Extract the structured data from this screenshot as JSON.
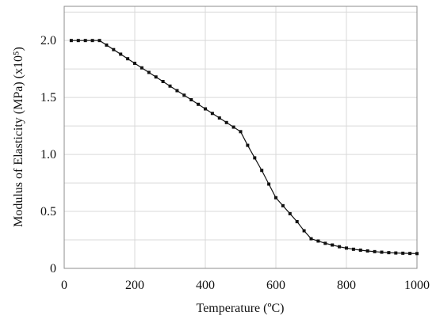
{
  "chart_data": {
    "type": "line",
    "xlabel": "Temperature (ºC)",
    "ylabel": "Modulus of Elasticity (MPa) (x10⁵)",
    "xlim": [
      0,
      1000
    ],
    "ylim": [
      0,
      2.3
    ],
    "xticks": [
      "0",
      "200",
      "400",
      "600",
      "800",
      "1000"
    ],
    "xtick_values": [
      0,
      200,
      400,
      600,
      800,
      1000
    ],
    "yticks": [
      "0",
      "0.5",
      "1.0",
      "1.5",
      "2.0"
    ],
    "ytick_values": [
      0,
      0.5,
      1.0,
      1.5,
      2.0
    ],
    "grid": true,
    "marker": "square",
    "colors": {
      "line": "#111111",
      "grid": "#d9d9d9",
      "frame": "#8c8c8c"
    },
    "series": [
      {
        "x": [
          20,
          40,
          60,
          80,
          100,
          120,
          140,
          160,
          180,
          200,
          220,
          240,
          260,
          280,
          300,
          320,
          340,
          360,
          380,
          400,
          420,
          440,
          460,
          480,
          500,
          520,
          540,
          560,
          580,
          600,
          620,
          640,
          660,
          680,
          700,
          720,
          740,
          760,
          780,
          800,
          820,
          840,
          860,
          880,
          900,
          920,
          940,
          960,
          980,
          1000
        ],
        "y": [
          2.0,
          2.0,
          2.0,
          2.0,
          2.0,
          1.96,
          1.92,
          1.88,
          1.84,
          1.8,
          1.76,
          1.72,
          1.68,
          1.64,
          1.6,
          1.56,
          1.52,
          1.48,
          1.44,
          1.4,
          1.36,
          1.32,
          1.28,
          1.24,
          1.2,
          1.08,
          0.97,
          0.86,
          0.74,
          0.62,
          0.55,
          0.48,
          0.41,
          0.33,
          0.26,
          0.24,
          0.22,
          0.205,
          0.19,
          0.178,
          0.168,
          0.16,
          0.153,
          0.147,
          0.142,
          0.138,
          0.135,
          0.133,
          0.131,
          0.13
        ]
      }
    ]
  }
}
